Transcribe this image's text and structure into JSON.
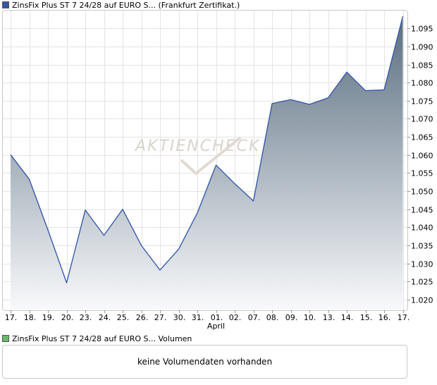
{
  "price_legend": {
    "label": "ZinsFix Plus ST 7 24/28 auf EURO S... (Frankfurt Zertifikat.)",
    "color": "#3355aa"
  },
  "volume_legend": {
    "label": "ZinsFix Plus ST 7 24/28 auf EURO S... Volumen",
    "color": "#66bb66"
  },
  "volume_message": "keine Volumendaten vorhanden",
  "watermark": "AKTIENCHECK",
  "chart_data": {
    "type": "area",
    "x": [
      "17.",
      "18.",
      "19.",
      "20.",
      "23.",
      "24.",
      "25.",
      "26.",
      "27.",
      "30.",
      "31.",
      "01.",
      "02.",
      "07.",
      "08.",
      "09.",
      "10.",
      "13.",
      "14.",
      "15.",
      "16.",
      "17."
    ],
    "month_label": {
      "index": 11,
      "text": "April"
    },
    "series": [
      {
        "values": [
          1.0601,
          1.0533,
          1.0393,
          1.0247,
          1.0448,
          1.0378,
          1.045,
          1.035,
          1.0282,
          1.034,
          1.044,
          1.0572,
          1.0521,
          1.0473,
          1.0742,
          1.0753,
          1.074,
          1.0758,
          1.0829,
          1.0778,
          1.078,
          1.0983
        ]
      }
    ],
    "yticks": [
      1.02,
      1.025,
      1.03,
      1.035,
      1.04,
      1.045,
      1.05,
      1.055,
      1.06,
      1.065,
      1.07,
      1.075,
      1.08,
      1.085,
      1.09,
      1.095
    ],
    "ylim": [
      1.0171,
      1.1001
    ],
    "grid": true,
    "line_color": "#2e52a8",
    "fill_top_color": "#5a6e80",
    "fill_bottom_color": "#f8f9fb"
  }
}
